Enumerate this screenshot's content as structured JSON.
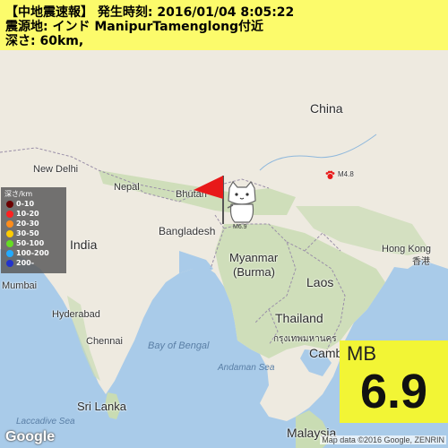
{
  "header": {
    "line1": "【中地震速報】 発生時刻: 2016/01/04 8:05:22",
    "line2": "震源地: インド ManipurTamenglong付近",
    "line3": "深さ: 60km,"
  },
  "labels": {
    "china": "China",
    "new_delhi": "New Delhi",
    "nepal": "Nepal",
    "bhutan": "Bhutan",
    "india": "India",
    "bangladesh": "Bangladesh",
    "myanmar": "Myanmar",
    "burma": "(Burma)",
    "laos": "Laos",
    "hong_kong": "Hong Kong",
    "hong_kong_cn": "香港",
    "mumbai": "Mumbai",
    "hyderabad": "Hyderabad",
    "chennai": "Chennai",
    "bay_of_bengal": "Bay of Bengal",
    "thailand": "Thailand",
    "bangkok_th": "กรุงเทพมหานคร",
    "cambodia": "Camb",
    "andaman_sea": "Andaman Sea",
    "sri_lanka": "Sri Lanka",
    "laccadive_sea": "Laccadive Sea",
    "malaysia": "Malaysia"
  },
  "quakes": {
    "main_label": "M6.9",
    "other_label": "M4.8"
  },
  "legend": {
    "title": "深さ/km",
    "items": [
      {
        "label": "0-10",
        "color": "#6b0000"
      },
      {
        "label": "10-20",
        "color": "#ff2020"
      },
      {
        "label": "20-30",
        "color": "#ff8c1a"
      },
      {
        "label": "30-50",
        "color": "#ffcc00"
      },
      {
        "label": "50-100",
        "color": "#66dd22"
      },
      {
        "label": "100-200",
        "color": "#22aaff"
      },
      {
        "label": "200-",
        "color": "#2233cc"
      }
    ]
  },
  "magnitude": {
    "type": "MB",
    "value": "6.9"
  },
  "footer": {
    "google": "Google",
    "attribution": "Map data ©2016 Google, ZENRIN"
  },
  "colors": {
    "land": "#eeeae0",
    "forest": "#c9dcb3",
    "water": "#a9cbe9",
    "border": "#9a8fa8",
    "header_bg": "#ffff50",
    "magnitude_bg": "#f2f535",
    "flag": "#e81919"
  }
}
